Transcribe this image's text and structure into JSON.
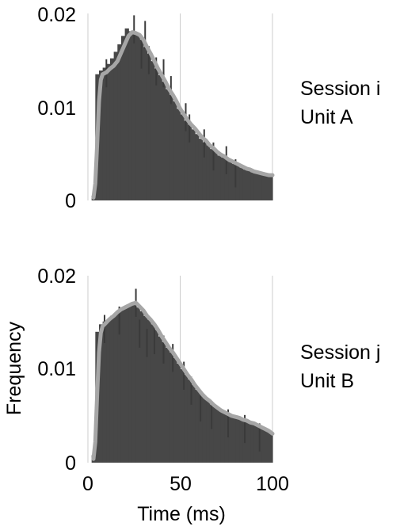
{
  "chart_data": {
    "type": "area",
    "xlabel": "Time (ms)",
    "ylabel": "Frequency",
    "xlim": [
      0,
      100
    ],
    "ylim": [
      0,
      0.02
    ],
    "x_ticks": [
      "0",
      "50",
      "100"
    ],
    "y_ticks": [
      "0",
      "0.01",
      "0.02"
    ],
    "colors": {
      "histogram": "#474747",
      "spike": "#3a3a3a",
      "fit": "#a6a6a6",
      "gridline": "#cccccc"
    },
    "panels": [
      {
        "label_line1": "Session i",
        "label_line2": "Unit A",
        "histogram_x": [
          2,
          4,
          6,
          8,
          10,
          12,
          14,
          16,
          18,
          20,
          22,
          24,
          26,
          28,
          30,
          32,
          34,
          36,
          38,
          40,
          42,
          44,
          46,
          48,
          50,
          52,
          54,
          56,
          58,
          60,
          62,
          64,
          66,
          68,
          70,
          72,
          74,
          76,
          78,
          80,
          82,
          84,
          86,
          88,
          90,
          92,
          94,
          96,
          98,
          100
        ],
        "histogram_y": [
          0.0,
          0.0005,
          0.0135,
          0.0139,
          0.0142,
          0.0146,
          0.0152,
          0.0159,
          0.0167,
          0.0176,
          0.0184,
          0.0181,
          0.0178,
          0.0179,
          0.0172,
          0.0164,
          0.0157,
          0.0149,
          0.0141,
          0.0134,
          0.0127,
          0.0119,
          0.0113,
          0.0106,
          0.0098,
          0.0092,
          0.0085,
          0.0081,
          0.0076,
          0.0071,
          0.0066,
          0.0062,
          0.0059,
          0.0055,
          0.0052,
          0.0048,
          0.0046,
          0.0044,
          0.0041,
          0.0039,
          0.0038,
          0.0035,
          0.0033,
          0.0032,
          0.003,
          0.0029,
          0.0028,
          0.0027,
          0.0027,
          0.0026
        ],
        "spikes_x": [
          10,
          25,
          29,
          31,
          33,
          37,
          41,
          45,
          53,
          55,
          63,
          68,
          75,
          80
        ],
        "spikes_y": [
          0.0151,
          0.0198,
          0.0171,
          0.0192,
          0.0165,
          0.0153,
          0.0151,
          0.0133,
          0.0104,
          0.0092,
          0.0076,
          0.0062,
          0.0058,
          0.0044
        ],
        "fit_x": [
          3,
          4,
          5,
          6,
          7,
          8,
          9,
          10,
          11,
          12,
          14,
          16,
          18,
          20,
          22,
          24,
          26,
          28,
          30,
          32,
          34,
          36,
          38,
          40,
          42,
          44,
          46,
          48,
          50,
          52,
          54,
          56,
          58,
          60,
          62,
          64,
          66,
          68,
          70,
          72,
          74,
          76,
          78,
          80,
          82,
          84,
          86,
          88,
          90,
          92,
          94,
          96,
          98,
          100
        ],
        "fit_y": [
          0.0003,
          0.0018,
          0.0061,
          0.0106,
          0.0129,
          0.0135,
          0.0136,
          0.0137,
          0.0139,
          0.0141,
          0.0144,
          0.0149,
          0.0158,
          0.0167,
          0.0176,
          0.018,
          0.0179,
          0.0177,
          0.0172,
          0.0164,
          0.0157,
          0.0149,
          0.0141,
          0.0134,
          0.0127,
          0.0119,
          0.0113,
          0.0106,
          0.0098,
          0.0092,
          0.0086,
          0.0081,
          0.0077,
          0.0072,
          0.0067,
          0.0064,
          0.0059,
          0.0056,
          0.0052,
          0.0049,
          0.0047,
          0.0044,
          0.0042,
          0.004,
          0.0038,
          0.0036,
          0.0034,
          0.0033,
          0.0031,
          0.003,
          0.0029,
          0.0028,
          0.0027,
          0.0027
        ]
      },
      {
        "label_line1": "Session j",
        "label_line2": "Unit B",
        "histogram_x": [
          2,
          4,
          6,
          8,
          10,
          12,
          14,
          16,
          18,
          20,
          22,
          24,
          26,
          28,
          30,
          32,
          34,
          36,
          38,
          40,
          42,
          44,
          46,
          48,
          50,
          52,
          54,
          56,
          58,
          60,
          62,
          64,
          66,
          68,
          70,
          72,
          74,
          76,
          78,
          80,
          82,
          84,
          86,
          88,
          90,
          92,
          94,
          96,
          98,
          100
        ],
        "histogram_y": [
          0.0,
          0.0008,
          0.014,
          0.0148,
          0.0151,
          0.0153,
          0.0157,
          0.016,
          0.0163,
          0.0166,
          0.0168,
          0.017,
          0.0171,
          0.0166,
          0.0162,
          0.0157,
          0.0153,
          0.0148,
          0.0142,
          0.0135,
          0.0129,
          0.0123,
          0.0118,
          0.0112,
          0.0106,
          0.01,
          0.0094,
          0.0089,
          0.0083,
          0.0078,
          0.0074,
          0.0069,
          0.0066,
          0.0062,
          0.0059,
          0.0056,
          0.0054,
          0.0052,
          0.0051,
          0.0049,
          0.0048,
          0.0046,
          0.0045,
          0.0043,
          0.0042,
          0.004,
          0.0038,
          0.0036,
          0.0034,
          0.0031
        ],
        "spikes_x": [
          9,
          17,
          26,
          28,
          32,
          36,
          41,
          46,
          52,
          56,
          61,
          67,
          76,
          85,
          93
        ],
        "spikes_y": [
          0.0158,
          0.0167,
          0.0186,
          0.0153,
          0.0143,
          0.0146,
          0.0136,
          0.0127,
          0.0108,
          0.0092,
          0.0074,
          0.0066,
          0.0057,
          0.0051,
          0.0042
        ],
        "fit_x": [
          3,
          4,
          5,
          6,
          7,
          8,
          9,
          10,
          11,
          12,
          14,
          16,
          18,
          20,
          22,
          24,
          26,
          28,
          30,
          32,
          34,
          36,
          38,
          40,
          42,
          44,
          46,
          48,
          50,
          52,
          54,
          56,
          58,
          60,
          62,
          64,
          66,
          68,
          70,
          72,
          74,
          76,
          78,
          80,
          82,
          84,
          86,
          88,
          90,
          92,
          94,
          96,
          98,
          100
        ],
        "fit_y": [
          0.0004,
          0.0022,
          0.0074,
          0.0118,
          0.0139,
          0.0146,
          0.0148,
          0.015,
          0.0152,
          0.0154,
          0.0157,
          0.0161,
          0.0164,
          0.0166,
          0.0168,
          0.017,
          0.0171,
          0.0167,
          0.0163,
          0.0157,
          0.0153,
          0.0148,
          0.0142,
          0.0135,
          0.0129,
          0.0123,
          0.0118,
          0.0112,
          0.0106,
          0.01,
          0.0094,
          0.0089,
          0.0083,
          0.0078,
          0.0073,
          0.0069,
          0.0066,
          0.0062,
          0.0059,
          0.0056,
          0.0054,
          0.0052,
          0.005,
          0.0049,
          0.0048,
          0.0046,
          0.0045,
          0.0043,
          0.0042,
          0.004,
          0.0038,
          0.0036,
          0.0034,
          0.0031
        ]
      }
    ]
  }
}
